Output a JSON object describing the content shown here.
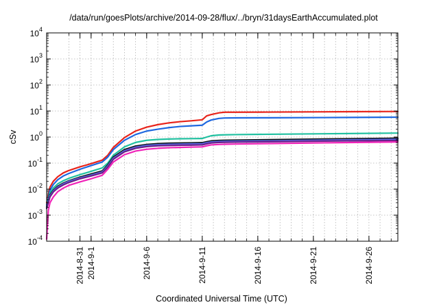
{
  "chart_data": {
    "type": "line",
    "title": "/data/run/goesPlots/archive/2014-09-28/flux/../bryn/31daysEarthAccumulated.plot",
    "xlabel": "Coordinated Universal Time (UTC)",
    "ylabel": "cSv",
    "yscale": "log",
    "ylim": [
      0.0001,
      10000
    ],
    "xlim": [
      0,
      31.6
    ],
    "x_reference_date": "2014-08-28",
    "grid": true,
    "y_ticks": [
      {
        "exp": -4,
        "base": "10",
        "sup": "-4"
      },
      {
        "exp": -3,
        "base": "10",
        "sup": "-3"
      },
      {
        "exp": -2,
        "base": "10",
        "sup": "-2"
      },
      {
        "exp": -1,
        "base": "10",
        "sup": "-1"
      },
      {
        "exp": 0,
        "base": "10",
        "sup": "0"
      },
      {
        "exp": 1,
        "base": "10",
        "sup": "1"
      },
      {
        "exp": 2,
        "base": "10",
        "sup": "2"
      },
      {
        "exp": 3,
        "base": "10",
        "sup": "3"
      },
      {
        "exp": 4,
        "base": "10",
        "sup": "4"
      }
    ],
    "x_ticks": [
      {
        "day": 3,
        "label": "2014-8-31"
      },
      {
        "day": 4,
        "label": "2014-9-1"
      },
      {
        "day": 9,
        "label": "2014-9-6"
      },
      {
        "day": 14,
        "label": "2014-9-11"
      },
      {
        "day": 19,
        "label": "2014-9-16"
      },
      {
        "day": 24,
        "label": "2014-9-21"
      },
      {
        "day": 29,
        "label": "2014-9-26"
      }
    ],
    "x_grid_days": [
      2,
      3,
      4,
      5,
      6,
      7,
      8,
      9,
      10,
      11,
      12,
      13,
      14,
      15,
      16,
      17,
      18,
      19,
      20,
      21,
      22,
      23,
      24,
      25,
      26,
      27,
      28,
      29,
      30,
      31
    ],
    "series": [
      {
        "color": "#e8231a",
        "x": [
          0,
          0.3,
          0.6,
          1,
          1.5,
          2,
          3,
          4,
          5,
          5.5,
          6,
          7,
          8,
          9,
          10,
          11,
          12,
          13,
          14,
          14.4,
          14.8,
          15.5,
          16,
          17,
          20,
          25,
          31.6
        ],
        "y": [
          0.003,
          0.012,
          0.02,
          0.03,
          0.042,
          0.052,
          0.072,
          0.095,
          0.13,
          0.2,
          0.4,
          0.95,
          1.7,
          2.4,
          3.0,
          3.5,
          3.9,
          4.2,
          4.6,
          6.5,
          7.3,
          8.5,
          9.0,
          9.0,
          9.1,
          9.3,
          9.6
        ]
      },
      {
        "color": "#1d67e0",
        "x": [
          0,
          0.3,
          0.6,
          1,
          1.5,
          2,
          3,
          4,
          5,
          5.5,
          6,
          7,
          8,
          9,
          10,
          11,
          12,
          13,
          14,
          14.4,
          14.8,
          15.5,
          16,
          17,
          20,
          25,
          31.6
        ],
        "y": [
          0.0025,
          0.009,
          0.015,
          0.023,
          0.032,
          0.04,
          0.058,
          0.08,
          0.11,
          0.17,
          0.33,
          0.75,
          1.25,
          1.7,
          2.0,
          2.3,
          2.55,
          2.7,
          2.85,
          3.8,
          4.5,
          5.2,
          5.4,
          5.45,
          5.5,
          5.6,
          5.8
        ]
      },
      {
        "color": "#20c0a0",
        "x": [
          0,
          0.3,
          0.6,
          1,
          1.5,
          2,
          3,
          4,
          5,
          5.5,
          6,
          7,
          8,
          9,
          10,
          11,
          12,
          13,
          14,
          14.4,
          14.8,
          15.5,
          16,
          17,
          20,
          25,
          31.6
        ],
        "y": [
          0.0022,
          0.007,
          0.011,
          0.016,
          0.021,
          0.026,
          0.036,
          0.048,
          0.065,
          0.1,
          0.2,
          0.42,
          0.62,
          0.75,
          0.81,
          0.84,
          0.86,
          0.87,
          0.88,
          1.0,
          1.12,
          1.2,
          1.22,
          1.24,
          1.28,
          1.34,
          1.42
        ]
      },
      {
        "color": "#101010",
        "x": [
          0,
          0.3,
          0.6,
          1,
          1.5,
          2,
          3,
          4,
          5,
          5.5,
          6,
          7,
          8,
          9,
          10,
          11,
          12,
          13,
          14,
          14.4,
          14.8,
          15.5,
          16,
          17,
          20,
          25,
          31.6
        ],
        "y": [
          0.002,
          0.006,
          0.009,
          0.013,
          0.017,
          0.021,
          0.029,
          0.038,
          0.05,
          0.085,
          0.17,
          0.33,
          0.45,
          0.52,
          0.56,
          0.58,
          0.59,
          0.6,
          0.61,
          0.66,
          0.71,
          0.74,
          0.75,
          0.76,
          0.79,
          0.84,
          0.9
        ]
      },
      {
        "color": "#5566dd",
        "x": [
          0,
          0.3,
          0.6,
          1,
          1.5,
          2,
          3,
          4,
          5,
          5.5,
          6,
          7,
          8,
          9,
          10,
          11,
          12,
          13,
          14,
          14.4,
          14.8,
          15.5,
          16,
          17,
          20,
          25,
          31.6
        ],
        "y": [
          0.0019,
          0.0055,
          0.0085,
          0.012,
          0.016,
          0.02,
          0.027,
          0.035,
          0.046,
          0.078,
          0.155,
          0.3,
          0.41,
          0.48,
          0.51,
          0.53,
          0.54,
          0.55,
          0.56,
          0.61,
          0.65,
          0.68,
          0.69,
          0.7,
          0.72,
          0.77,
          0.82
        ]
      },
      {
        "color": "#6a1f8a",
        "x": [
          0,
          0.3,
          0.6,
          1,
          1.5,
          2,
          3,
          4,
          5,
          5.5,
          6,
          7,
          8,
          9,
          10,
          11,
          12,
          13,
          14,
          14.4,
          14.8,
          15.5,
          16,
          17,
          20,
          25,
          31.6
        ],
        "y": [
          0.0018,
          0.005,
          0.0078,
          0.011,
          0.0145,
          0.018,
          0.025,
          0.032,
          0.042,
          0.07,
          0.14,
          0.27,
          0.37,
          0.43,
          0.46,
          0.475,
          0.485,
          0.49,
          0.5,
          0.55,
          0.59,
          0.62,
          0.63,
          0.64,
          0.66,
          0.7,
          0.74
        ]
      },
      {
        "color": "#f022b8",
        "x": [
          0,
          0.15,
          0.3,
          0.6,
          1,
          1.5,
          2,
          3,
          4,
          5,
          5.5,
          6,
          7,
          8,
          9,
          10,
          11,
          12,
          13,
          14,
          14.4,
          14.8,
          15.5,
          16,
          17,
          20,
          25,
          31.6
        ],
        "y": [
          0.00012,
          0.0015,
          0.003,
          0.005,
          0.008,
          0.011,
          0.014,
          0.019,
          0.025,
          0.034,
          0.058,
          0.11,
          0.21,
          0.29,
          0.34,
          0.37,
          0.39,
          0.4,
          0.41,
          0.42,
          0.46,
          0.5,
          0.52,
          0.53,
          0.54,
          0.56,
          0.6,
          0.65
        ]
      }
    ]
  }
}
